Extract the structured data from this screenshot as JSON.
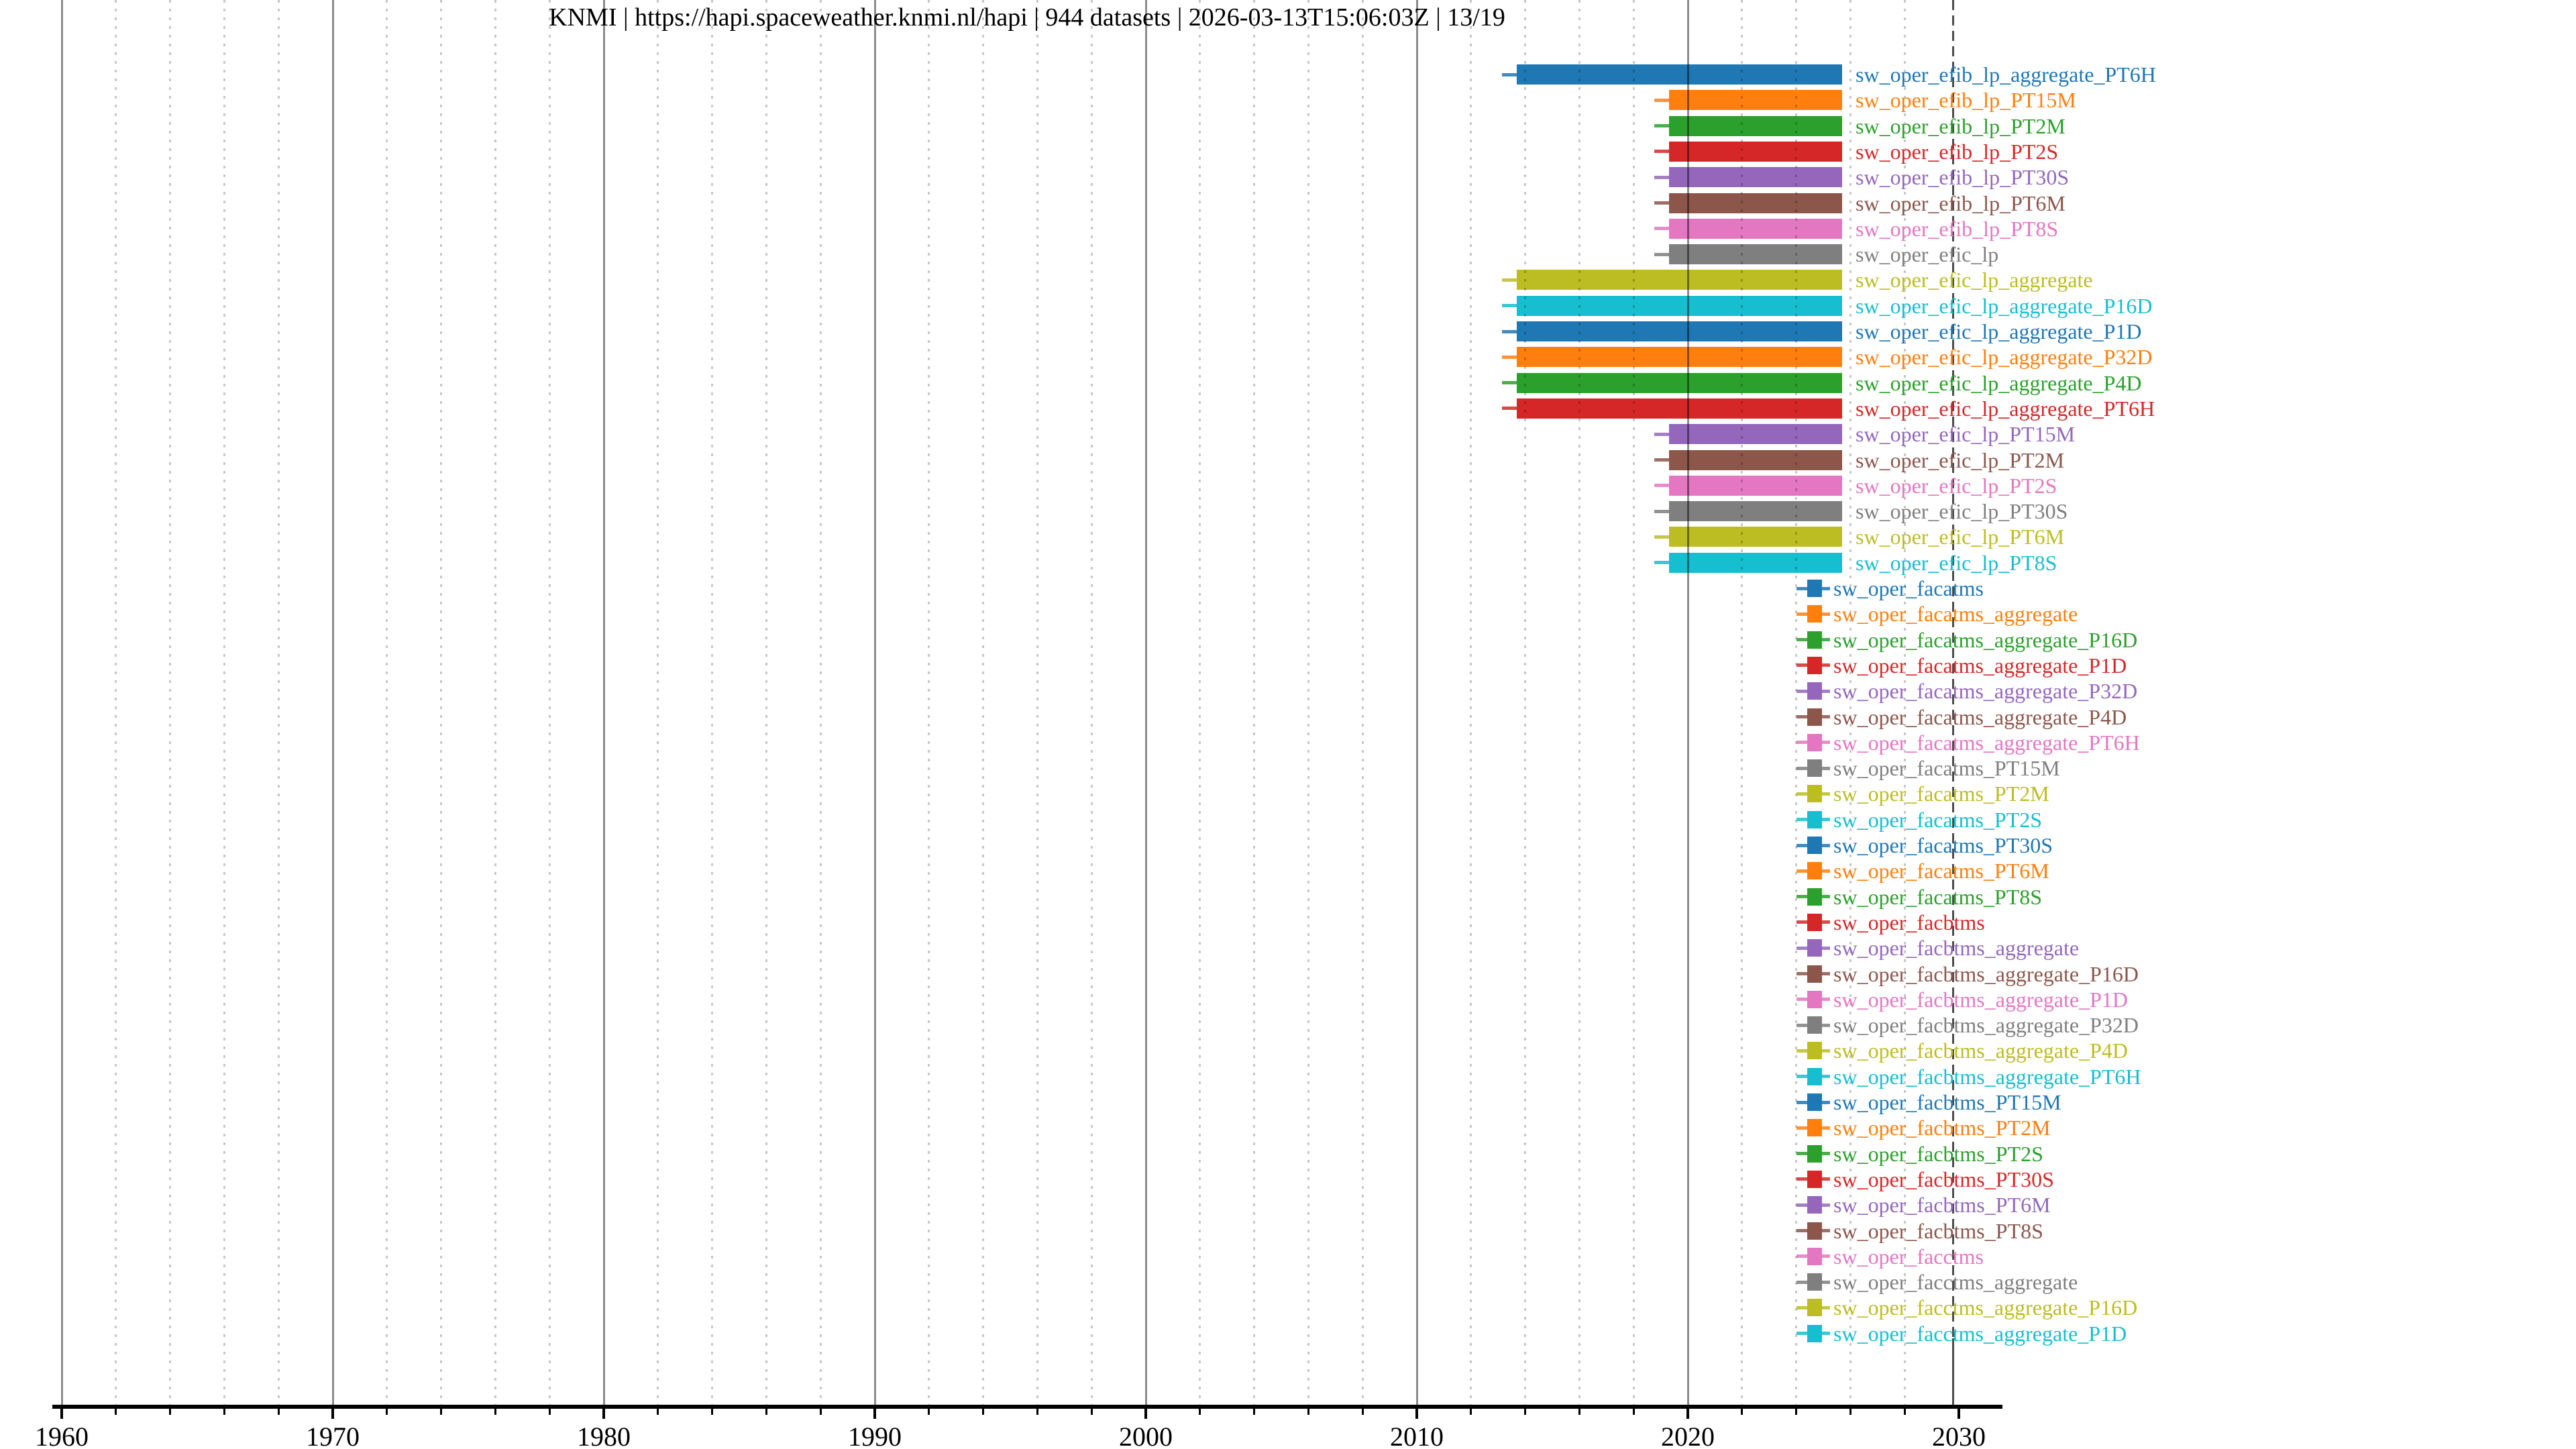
{
  "title": "KNMI | https://hapi.spaceweather.knmi.nl/hapi | 944 datasets | 2026-03-13T15:06:03Z | 13/19",
  "chart_data": {
    "type": "bar",
    "subtype": "dataset-time-availability-timeline",
    "title": "KNMI | https://hapi.spaceweather.knmi.nl/hapi | 944 datasets | 2026-03-13T15:06:03Z | 13/19",
    "server": "KNMI",
    "server_url": "https://hapi.spaceweather.knmi.nl/hapi",
    "dataset_count_text": "944 datasets",
    "generated_timestamp": "2026-03-13T15:06:03Z",
    "page_indicator": "13/19",
    "x_axis": {
      "label": "",
      "min_year": 1959.7,
      "max_year": 2031.6,
      "major_ticks": [
        "1960",
        "1970",
        "1980",
        "1990",
        "2000",
        "2010",
        "2020",
        "2030"
      ],
      "major_tick_years": [
        1960,
        1970,
        1980,
        1990,
        2000,
        2010,
        2020,
        2030
      ],
      "minor_tick_step_years": 2,
      "major_grid_style": "solid-gray",
      "minor_grid_style": "dotted-light-gray"
    },
    "dashed_now_line_year": 2029.8,
    "palette_tab10": [
      "#1f77b4",
      "#ff7f0e",
      "#2ca02c",
      "#d62728",
      "#9467bd",
      "#8c564b",
      "#e377c2",
      "#7f7f7f",
      "#bcbd22",
      "#17becf"
    ],
    "coverage_presets": {
      "long": {
        "bar_start": 2013.7,
        "bar_end": 2025.7,
        "whisker_start": 2013.15,
        "whisker_end": 2025.7
      },
      "short": {
        "bar_start": 2019.3,
        "bar_end": 2025.7,
        "whisker_start": 2018.75,
        "whisker_end": 2025.7
      },
      "mark": {
        "bar_start": 2024.4,
        "bar_end": 2024.95,
        "whisker_start": 2024.0,
        "whisker_end": 2025.25
      }
    },
    "rows": [
      {
        "label": "sw_oper_efib_lp_aggregate_PT6H",
        "color": "#1f77b4",
        "range": "long"
      },
      {
        "label": "sw_oper_efib_lp_PT15M",
        "color": "#ff7f0e",
        "range": "short"
      },
      {
        "label": "sw_oper_efib_lp_PT2M",
        "color": "#2ca02c",
        "range": "short"
      },
      {
        "label": "sw_oper_efib_lp_PT2S",
        "color": "#d62728",
        "range": "short"
      },
      {
        "label": "sw_oper_efib_lp_PT30S",
        "color": "#9467bd",
        "range": "short"
      },
      {
        "label": "sw_oper_efib_lp_PT6M",
        "color": "#8c564b",
        "range": "short"
      },
      {
        "label": "sw_oper_efib_lp_PT8S",
        "color": "#e377c2",
        "range": "short"
      },
      {
        "label": "sw_oper_efic_lp",
        "color": "#7f7f7f",
        "range": "short"
      },
      {
        "label": "sw_oper_efic_lp_aggregate",
        "color": "#bcbd22",
        "range": "long"
      },
      {
        "label": "sw_oper_efic_lp_aggregate_P16D",
        "color": "#17becf",
        "range": "long"
      },
      {
        "label": "sw_oper_efic_lp_aggregate_P1D",
        "color": "#1f77b4",
        "range": "long"
      },
      {
        "label": "sw_oper_efic_lp_aggregate_P32D",
        "color": "#ff7f0e",
        "range": "long"
      },
      {
        "label": "sw_oper_efic_lp_aggregate_P4D",
        "color": "#2ca02c",
        "range": "long"
      },
      {
        "label": "sw_oper_efic_lp_aggregate_PT6H",
        "color": "#d62728",
        "range": "long"
      },
      {
        "label": "sw_oper_efic_lp_PT15M",
        "color": "#9467bd",
        "range": "short"
      },
      {
        "label": "sw_oper_efic_lp_PT2M",
        "color": "#8c564b",
        "range": "short"
      },
      {
        "label": "sw_oper_efic_lp_PT2S",
        "color": "#e377c2",
        "range": "short"
      },
      {
        "label": "sw_oper_efic_lp_PT30S",
        "color": "#7f7f7f",
        "range": "short"
      },
      {
        "label": "sw_oper_efic_lp_PT6M",
        "color": "#bcbd22",
        "range": "short"
      },
      {
        "label": "sw_oper_efic_lp_PT8S",
        "color": "#17becf",
        "range": "short"
      },
      {
        "label": "sw_oper_facatms",
        "color": "#1f77b4",
        "range": "mark"
      },
      {
        "label": "sw_oper_facatms_aggregate",
        "color": "#ff7f0e",
        "range": "mark"
      },
      {
        "label": "sw_oper_facatms_aggregate_P16D",
        "color": "#2ca02c",
        "range": "mark"
      },
      {
        "label": "sw_oper_facatms_aggregate_P1D",
        "color": "#d62728",
        "range": "mark"
      },
      {
        "label": "sw_oper_facatms_aggregate_P32D",
        "color": "#9467bd",
        "range": "mark"
      },
      {
        "label": "sw_oper_facatms_aggregate_P4D",
        "color": "#8c564b",
        "range": "mark"
      },
      {
        "label": "sw_oper_facatms_aggregate_PT6H",
        "color": "#e377c2",
        "range": "mark"
      },
      {
        "label": "sw_oper_facatms_PT15M",
        "color": "#7f7f7f",
        "range": "mark"
      },
      {
        "label": "sw_oper_facatms_PT2M",
        "color": "#bcbd22",
        "range": "mark"
      },
      {
        "label": "sw_oper_facatms_PT2S",
        "color": "#17becf",
        "range": "mark"
      },
      {
        "label": "sw_oper_facatms_PT30S",
        "color": "#1f77b4",
        "range": "mark"
      },
      {
        "label": "sw_oper_facatms_PT6M",
        "color": "#ff7f0e",
        "range": "mark"
      },
      {
        "label": "sw_oper_facatms_PT8S",
        "color": "#2ca02c",
        "range": "mark"
      },
      {
        "label": "sw_oper_facbtms",
        "color": "#d62728",
        "range": "mark"
      },
      {
        "label": "sw_oper_facbtms_aggregate",
        "color": "#9467bd",
        "range": "mark"
      },
      {
        "label": "sw_oper_facbtms_aggregate_P16D",
        "color": "#8c564b",
        "range": "mark"
      },
      {
        "label": "sw_oper_facbtms_aggregate_P1D",
        "color": "#e377c2",
        "range": "mark"
      },
      {
        "label": "sw_oper_facbtms_aggregate_P32D",
        "color": "#7f7f7f",
        "range": "mark"
      },
      {
        "label": "sw_oper_facbtms_aggregate_P4D",
        "color": "#bcbd22",
        "range": "mark"
      },
      {
        "label": "sw_oper_facbtms_aggregate_PT6H",
        "color": "#17becf",
        "range": "mark"
      },
      {
        "label": "sw_oper_facbtms_PT15M",
        "color": "#1f77b4",
        "range": "mark"
      },
      {
        "label": "sw_oper_facbtms_PT2M",
        "color": "#ff7f0e",
        "range": "mark"
      },
      {
        "label": "sw_oper_facbtms_PT2S",
        "color": "#2ca02c",
        "range": "mark"
      },
      {
        "label": "sw_oper_facbtms_PT30S",
        "color": "#d62728",
        "range": "mark"
      },
      {
        "label": "sw_oper_facbtms_PT6M",
        "color": "#9467bd",
        "range": "mark"
      },
      {
        "label": "sw_oper_facbtms_PT8S",
        "color": "#8c564b",
        "range": "mark"
      },
      {
        "label": "sw_oper_facctms",
        "color": "#e377c2",
        "range": "mark"
      },
      {
        "label": "sw_oper_facctms_aggregate",
        "color": "#7f7f7f",
        "range": "mark"
      },
      {
        "label": "sw_oper_facctms_aggregate_P16D",
        "color": "#bcbd22",
        "range": "mark"
      },
      {
        "label": "sw_oper_facctms_aggregate_P1D",
        "color": "#17becf",
        "range": "mark"
      }
    ]
  }
}
